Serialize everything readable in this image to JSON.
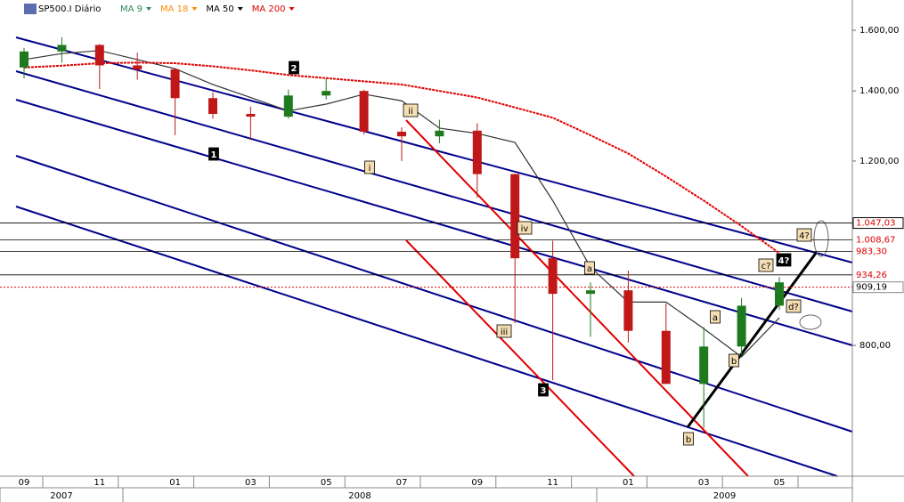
{
  "chart_data": {
    "type": "candlestick",
    "symbol": "SP500.I Diário",
    "log_scale": true,
    "up_color": "#1f7a1f",
    "down_color": "#c01818",
    "x": [
      "2007-09",
      "2007-10",
      "2007-11",
      "2007-12",
      "2008-01",
      "2008-02",
      "2008-03",
      "2008-04",
      "2008-05",
      "2008-06",
      "2008-07",
      "2008-08",
      "2008-09",
      "2008-10",
      "2008-11",
      "2008-12",
      "2009-01",
      "2009-02",
      "2009-03",
      "2009-04",
      "2009-05"
    ],
    "open": [
      1474,
      1527,
      1549,
      1481,
      1468,
      1378,
      1331,
      1323,
      1386,
      1400,
      1280,
      1267,
      1283,
      1166,
      969,
      896,
      903,
      826,
      735,
      798,
      873
    ],
    "high": [
      1539,
      1576,
      1552,
      1523,
      1471,
      1396,
      1352,
      1404,
      1440,
      1404,
      1292,
      1314,
      1304,
      1167,
      1007,
      919,
      943,
      877,
      833,
      888,
      930
    ],
    "low": [
      1439,
      1490,
      1406,
      1435,
      1270,
      1317,
      1257,
      1317,
      1374,
      1272,
      1200,
      1248,
      1107,
      840,
      741,
      815,
      805,
      735,
      667,
      784,
      865
    ],
    "close": [
      1527,
      1549,
      1481,
      1468,
      1378,
      1331,
      1323,
      1386,
      1400,
      1280,
      1267,
      1283,
      1166,
      969,
      896,
      903,
      826,
      735,
      798,
      873,
      919
    ],
    "legend": [
      {
        "name": "MA 9",
        "color": "#2e8b57"
      },
      {
        "name": "MA 18",
        "color": "#ff8c00"
      }
    ],
    "series": [
      {
        "name": "MA 50",
        "color": "#333333",
        "values": [
          1500,
          1520,
          1530,
          1500,
          1470,
          1420,
          1380,
          1340,
          1360,
          1390,
          1370,
          1290,
          1275,
          1250,
          1100,
          950,
          880,
          880,
          830,
          780,
          850
        ]
      },
      {
        "name": "MA 200",
        "color": "#e00000",
        "values": [
          1474,
          1480,
          1488,
          1490,
          1488,
          1478,
          1465,
          1450,
          1440,
          1430,
          1420,
          1400,
          1380,
          1350,
          1320,
          1270,
          1220,
          1160,
          1100,
          1040,
          980
        ]
      }
    ],
    "ylim": [
      600,
      1710
    ],
    "yticks": [
      {
        "value": 1600,
        "label": "1.600,00"
      },
      {
        "value": 1400,
        "label": "1.400,00"
      },
      {
        "value": 1200,
        "label": "1.200,00"
      },
      {
        "value": 800,
        "label": "800,00"
      }
    ],
    "levels": [
      {
        "value": 1047.03,
        "label": "1.047,03"
      },
      {
        "value": 1008.67,
        "label": "1.008,67"
      },
      {
        "value": 983.3,
        "label": "983,30"
      },
      {
        "value": 934.26,
        "label": "934,26"
      }
    ],
    "last_price": {
      "value": 909.19,
      "label": "909,19"
    },
    "xticks": [
      {
        "value": "2007-09",
        "label": "09"
      },
      {
        "value": "2007-11",
        "label": "11"
      },
      {
        "value": "2008-01",
        "label": "01"
      },
      {
        "value": "2008-03",
        "label": "03"
      },
      {
        "value": "2008-05",
        "label": "05"
      },
      {
        "value": "2008-07",
        "label": "07"
      },
      {
        "value": "2008-09",
        "label": "09"
      },
      {
        "value": "2008-11",
        "label": "11"
      },
      {
        "value": "2009-01",
        "label": "01"
      },
      {
        "value": "2009-03",
        "label": "03"
      },
      {
        "value": "2009-05",
        "label": "05"
      }
    ],
    "years": [
      "2007",
      "2008",
      "2009"
    ],
    "annotations": [
      "2",
      "1",
      "i",
      "ii",
      "iii",
      "iv",
      "3",
      "a",
      "b",
      "a",
      "b",
      "c?",
      "4?",
      "4?",
      "d?"
    ]
  }
}
